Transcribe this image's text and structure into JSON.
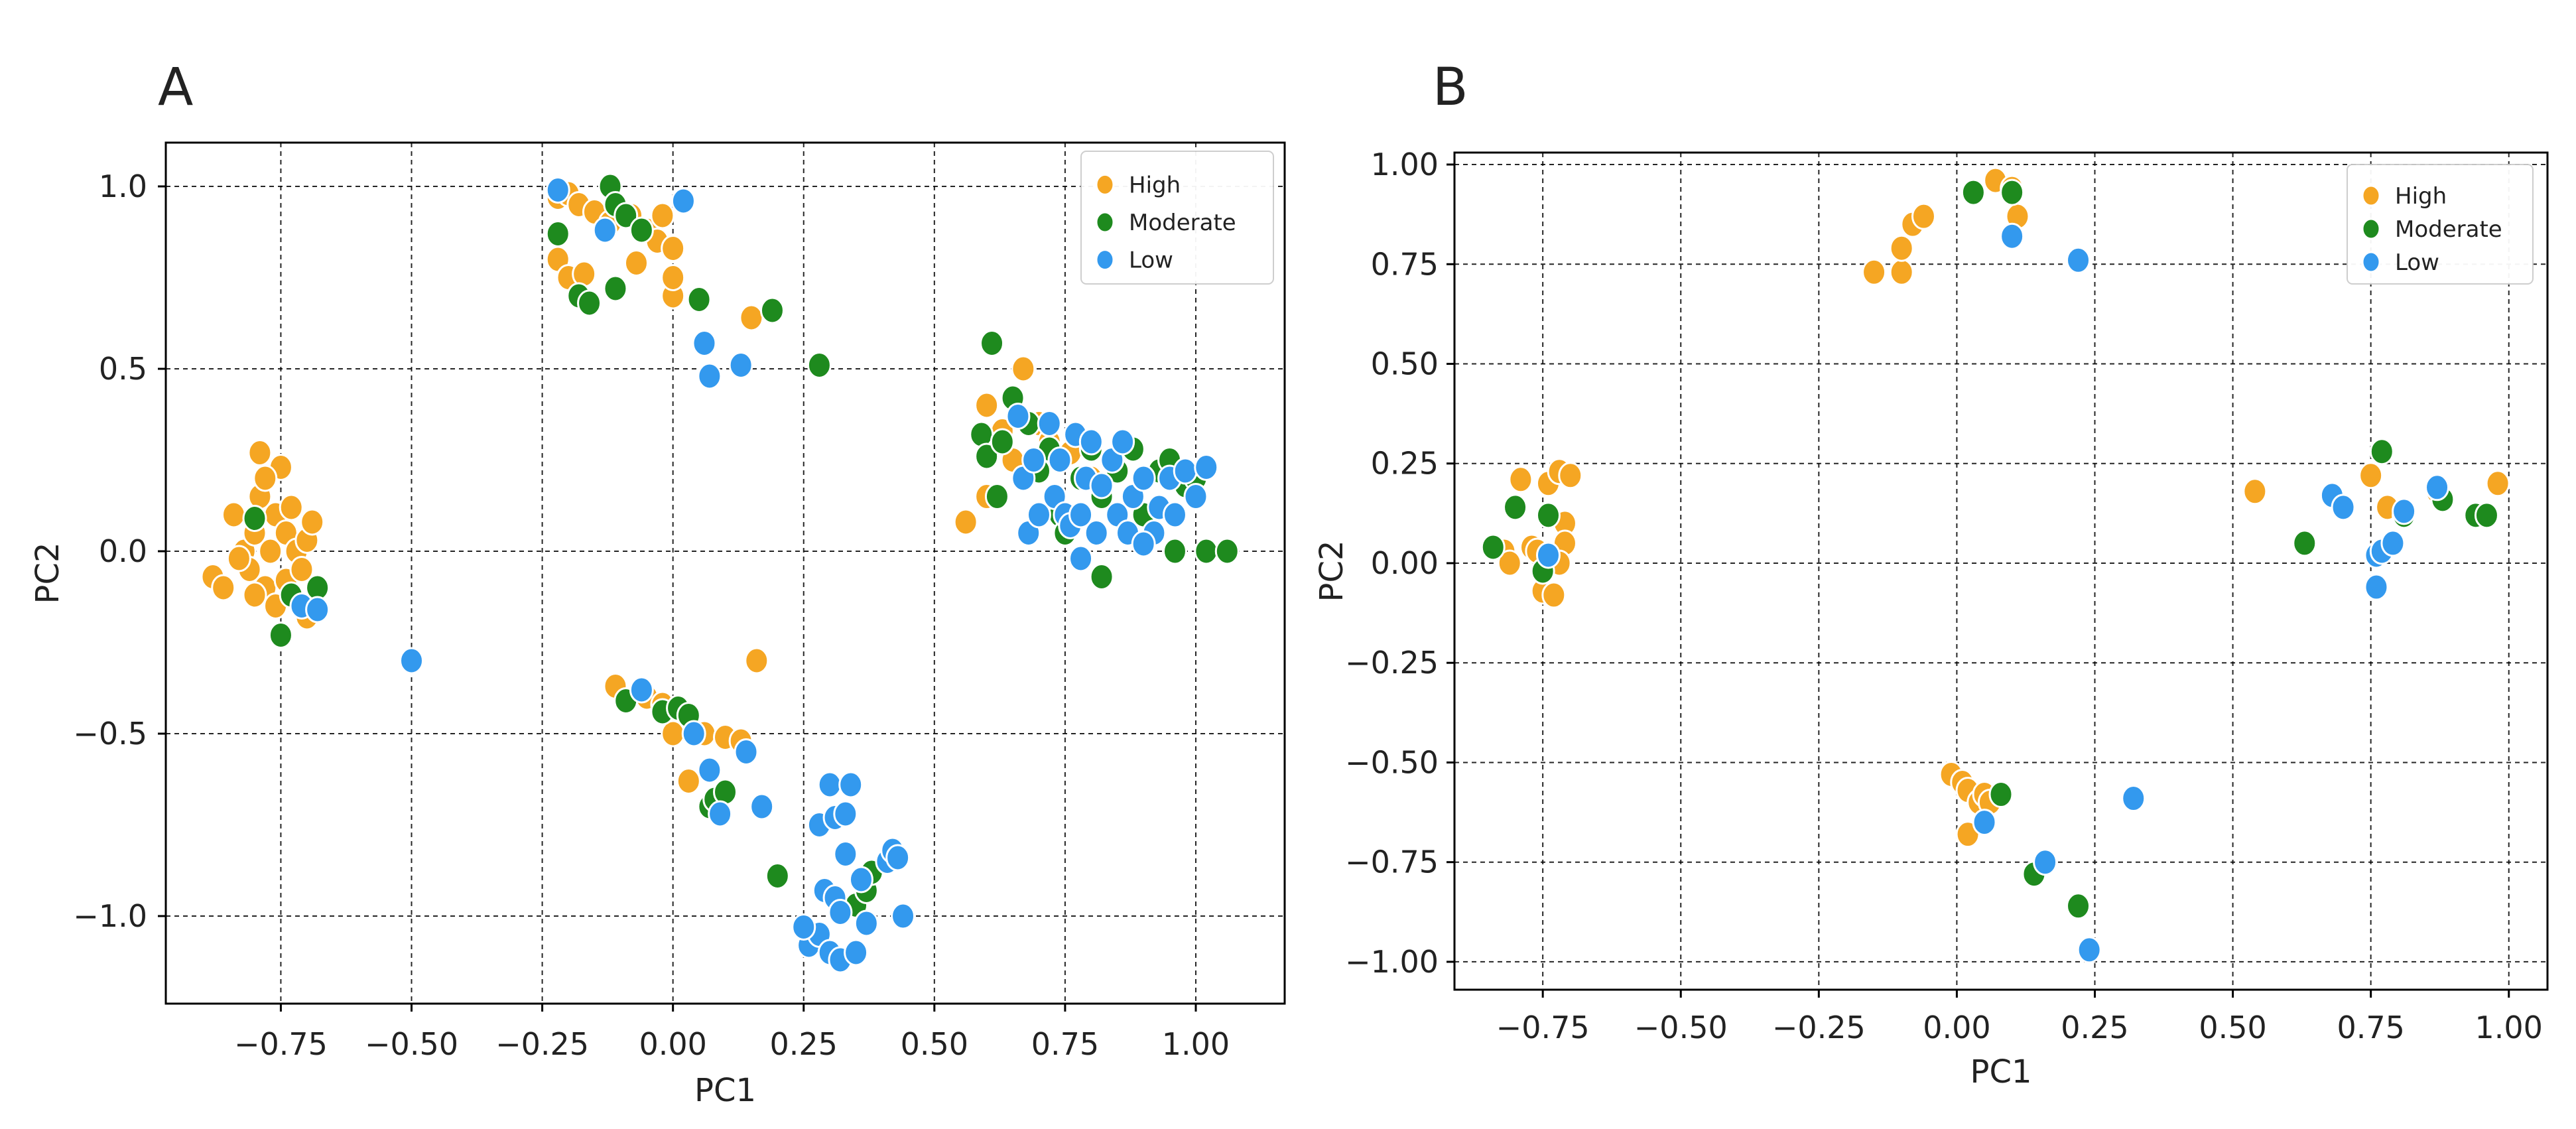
{
  "colors": {
    "High": "#F5A623",
    "Moderate": "#1E8A1E",
    "Low": "#3399EE"
  },
  "chart_data": [
    {
      "panel": "A",
      "type": "scatter",
      "title": "",
      "xlabel": "PC1",
      "ylabel": "PC2",
      "xlim": [
        -0.97,
        1.17
      ],
      "ylim": [
        -1.24,
        1.12
      ],
      "xticks": [
        -0.75,
        -0.5,
        -0.25,
        0.0,
        0.25,
        0.5,
        0.75,
        1.0
      ],
      "xtick_labels": [
        "−0.75",
        "−0.50",
        "−0.25",
        "0.00",
        "0.25",
        "0.50",
        "0.75",
        "1.00"
      ],
      "yticks": [
        -1.0,
        -0.5,
        0.0,
        0.5,
        1.0
      ],
      "ytick_labels": [
        "−1.0",
        "−0.5",
        "0.0",
        "0.5",
        "1.0"
      ],
      "grid": true,
      "legend_position": "top-right",
      "series": [
        {
          "name": "High",
          "points": [
            [
              -0.88,
              -0.07
            ],
            [
              -0.86,
              -0.1
            ],
            [
              -0.84,
              0.1
            ],
            [
              -0.82,
              0.0
            ],
            [
              -0.81,
              -0.05
            ],
            [
              -0.8,
              0.05
            ],
            [
              -0.79,
              0.27
            ],
            [
              -0.79,
              0.15
            ],
            [
              -0.78,
              -0.1
            ],
            [
              -0.77,
              0.0
            ],
            [
              -0.76,
              0.1
            ],
            [
              -0.76,
              -0.15
            ],
            [
              -0.75,
              0.23
            ],
            [
              -0.74,
              0.05
            ],
            [
              -0.74,
              -0.08
            ],
            [
              -0.73,
              0.12
            ],
            [
              -0.72,
              0.0
            ],
            [
              -0.71,
              -0.05
            ],
            [
              -0.7,
              0.03
            ],
            [
              -0.69,
              0.08
            ],
            [
              -0.7,
              -0.18
            ],
            [
              -0.8,
              -0.12
            ],
            [
              -0.83,
              -0.02
            ],
            [
              -0.78,
              0.2
            ],
            [
              -0.22,
              0.97
            ],
            [
              -0.2,
              0.98
            ],
            [
              -0.18,
              0.95
            ],
            [
              -0.15,
              0.93
            ],
            [
              -0.12,
              0.9
            ],
            [
              -0.08,
              0.92
            ],
            [
              -0.05,
              0.88
            ],
            [
              -0.03,
              0.85
            ],
            [
              0.0,
              0.83
            ],
            [
              0.0,
              0.7
            ],
            [
              0.0,
              0.75
            ],
            [
              -0.22,
              0.8
            ],
            [
              -0.2,
              0.75
            ],
            [
              -0.17,
              0.76
            ],
            [
              -0.07,
              0.79
            ],
            [
              0.15,
              0.64
            ],
            [
              -0.02,
              0.92
            ],
            [
              -0.11,
              -0.37
            ],
            [
              -0.05,
              -0.4
            ],
            [
              -0.02,
              -0.42
            ],
            [
              0.0,
              -0.45
            ],
            [
              0.03,
              -0.48
            ],
            [
              0.06,
              -0.5
            ],
            [
              0.1,
              -0.51
            ],
            [
              0.13,
              -0.52
            ],
            [
              0.16,
              -0.3
            ],
            [
              0.03,
              -0.63
            ],
            [
              0.0,
              -0.5
            ],
            [
              0.56,
              0.08
            ],
            [
              0.6,
              0.4
            ],
            [
              0.63,
              0.33
            ],
            [
              0.65,
              0.25
            ],
            [
              0.67,
              0.5
            ],
            [
              0.7,
              0.35
            ],
            [
              0.72,
              0.3
            ],
            [
              0.76,
              0.27
            ],
            [
              0.8,
              0.2
            ],
            [
              0.6,
              0.15
            ]
          ]
        },
        {
          "name": "Moderate",
          "points": [
            [
              -0.8,
              0.09
            ],
            [
              -0.75,
              -0.23
            ],
            [
              -0.73,
              -0.12
            ],
            [
              -0.68,
              -0.1
            ],
            [
              -0.22,
              0.87
            ],
            [
              -0.18,
              0.7
            ],
            [
              -0.16,
              0.68
            ],
            [
              -0.12,
              1.0
            ],
            [
              -0.11,
              0.95
            ],
            [
              -0.09,
              0.92
            ],
            [
              -0.06,
              0.88
            ],
            [
              -0.11,
              0.72
            ],
            [
              0.05,
              0.69
            ],
            [
              0.19,
              0.66
            ],
            [
              0.28,
              0.51
            ],
            [
              -0.09,
              -0.41
            ],
            [
              -0.02,
              -0.44
            ],
            [
              0.01,
              -0.43
            ],
            [
              0.03,
              -0.45
            ],
            [
              0.07,
              -0.7
            ],
            [
              0.08,
              -0.68
            ],
            [
              0.1,
              -0.66
            ],
            [
              0.2,
              -0.89
            ],
            [
              0.35,
              -0.97
            ],
            [
              0.37,
              -0.93
            ],
            [
              0.38,
              -0.88
            ],
            [
              0.59,
              0.32
            ],
            [
              0.6,
              0.26
            ],
            [
              0.61,
              0.57
            ],
            [
              0.63,
              0.3
            ],
            [
              0.65,
              0.42
            ],
            [
              0.68,
              0.35
            ],
            [
              0.7,
              0.22
            ],
            [
              0.72,
              0.28
            ],
            [
              0.74,
              0.1
            ],
            [
              0.78,
              0.2
            ],
            [
              0.8,
              0.28
            ],
            [
              0.82,
              0.15
            ],
            [
              0.82,
              -0.07
            ],
            [
              0.85,
              0.22
            ],
            [
              0.88,
              0.28
            ],
            [
              0.9,
              0.1
            ],
            [
              0.93,
              0.22
            ],
            [
              0.95,
              0.25
            ],
            [
              0.98,
              0.18
            ],
            [
              1.0,
              0.2
            ],
            [
              1.02,
              0.0
            ],
            [
              1.06,
              0.0
            ],
            [
              0.96,
              0.0
            ],
            [
              0.75,
              0.05
            ],
            [
              0.62,
              0.15
            ]
          ]
        },
        {
          "name": "Low",
          "points": [
            [
              -0.71,
              -0.15
            ],
            [
              -0.68,
              -0.16
            ],
            [
              -0.5,
              -0.3
            ],
            [
              -0.22,
              0.99
            ],
            [
              -0.13,
              0.88
            ],
            [
              0.02,
              0.96
            ],
            [
              0.06,
              0.57
            ],
            [
              0.07,
              0.48
            ],
            [
              0.13,
              0.51
            ],
            [
              -0.06,
              -0.38
            ],
            [
              0.04,
              -0.5
            ],
            [
              0.07,
              -0.6
            ],
            [
              0.09,
              -0.72
            ],
            [
              0.14,
              -0.55
            ],
            [
              0.17,
              -0.7
            ],
            [
              0.26,
              -1.08
            ],
            [
              0.28,
              -0.75
            ],
            [
              0.28,
              -1.05
            ],
            [
              0.29,
              -0.93
            ],
            [
              0.3,
              -0.64
            ],
            [
              0.3,
              -1.1
            ],
            [
              0.31,
              -0.95
            ],
            [
              0.31,
              -0.73
            ],
            [
              0.32,
              -1.12
            ],
            [
              0.33,
              -0.72
            ],
            [
              0.33,
              -0.83
            ],
            [
              0.34,
              -0.64
            ],
            [
              0.35,
              -1.1
            ],
            [
              0.36,
              -0.9
            ],
            [
              0.37,
              -1.02
            ],
            [
              0.41,
              -0.85
            ],
            [
              0.42,
              -0.82
            ],
            [
              0.43,
              -0.84
            ],
            [
              0.44,
              -1.0
            ],
            [
              0.32,
              -0.99
            ],
            [
              0.25,
              -1.03
            ],
            [
              0.66,
              0.37
            ],
            [
              0.67,
              0.2
            ],
            [
              0.68,
              0.05
            ],
            [
              0.69,
              0.25
            ],
            [
              0.7,
              0.1
            ],
            [
              0.72,
              0.35
            ],
            [
              0.73,
              0.15
            ],
            [
              0.74,
              0.25
            ],
            [
              0.75,
              0.1
            ],
            [
              0.76,
              0.07
            ],
            [
              0.77,
              0.32
            ],
            [
              0.78,
              0.1
            ],
            [
              0.79,
              0.2
            ],
            [
              0.8,
              0.3
            ],
            [
              0.81,
              0.05
            ],
            [
              0.82,
              0.18
            ],
            [
              0.84,
              0.25
            ],
            [
              0.85,
              0.1
            ],
            [
              0.86,
              0.3
            ],
            [
              0.87,
              0.05
            ],
            [
              0.88,
              0.15
            ],
            [
              0.9,
              0.2
            ],
            [
              0.92,
              0.05
            ],
            [
              0.93,
              0.12
            ],
            [
              0.95,
              0.2
            ],
            [
              0.96,
              0.1
            ],
            [
              0.98,
              0.22
            ],
            [
              1.0,
              0.15
            ],
            [
              1.02,
              0.23
            ],
            [
              0.78,
              -0.02
            ],
            [
              0.9,
              0.02
            ]
          ]
        }
      ]
    },
    {
      "panel": "B",
      "type": "scatter",
      "title": "",
      "xlabel": "PC1",
      "ylabel": "PC2",
      "xlim": [
        -0.91,
        1.07
      ],
      "ylim": [
        -1.07,
        1.03
      ],
      "xticks": [
        -0.75,
        -0.5,
        -0.25,
        0.0,
        0.25,
        0.5,
        0.75,
        1.0
      ],
      "xtick_labels": [
        "−0.75",
        "−0.50",
        "−0.25",
        "0.00",
        "0.25",
        "0.50",
        "0.75",
        "1.00"
      ],
      "yticks": [
        -1.0,
        -0.75,
        -0.5,
        -0.25,
        0.0,
        0.25,
        0.5,
        0.75,
        1.0
      ],
      "ytick_labels": [
        "−1.00",
        "−0.75",
        "−0.50",
        "−0.25",
        "0.00",
        "0.25",
        "0.50",
        "0.75",
        "1.00"
      ],
      "grid": true,
      "legend_position": "top-right",
      "series": [
        {
          "name": "High",
          "points": [
            [
              -0.82,
              0.03
            ],
            [
              -0.81,
              0.0
            ],
            [
              -0.79,
              0.21
            ],
            [
              -0.77,
              0.04
            ],
            [
              -0.76,
              0.03
            ],
            [
              -0.75,
              -0.07
            ],
            [
              -0.74,
              0.2
            ],
            [
              -0.73,
              -0.08
            ],
            [
              -0.72,
              0.23
            ],
            [
              -0.71,
              0.1
            ],
            [
              -0.71,
              0.05
            ],
            [
              -0.7,
              0.22
            ],
            [
              -0.72,
              0.0
            ],
            [
              -0.15,
              0.73
            ],
            [
              -0.1,
              0.73
            ],
            [
              -0.1,
              0.79
            ],
            [
              -0.08,
              0.85
            ],
            [
              -0.06,
              0.87
            ],
            [
              0.07,
              0.96
            ],
            [
              0.1,
              0.94
            ],
            [
              0.11,
              0.87
            ],
            [
              -0.01,
              -0.53
            ],
            [
              0.01,
              -0.55
            ],
            [
              0.02,
              -0.57
            ],
            [
              0.02,
              -0.68
            ],
            [
              0.04,
              -0.6
            ],
            [
              0.05,
              -0.58
            ],
            [
              0.06,
              -0.6
            ],
            [
              0.54,
              0.18
            ],
            [
              0.75,
              0.22
            ],
            [
              0.78,
              0.14
            ],
            [
              0.87,
              0.18
            ],
            [
              0.98,
              0.2
            ]
          ]
        },
        {
          "name": "Moderate",
          "points": [
            [
              -0.84,
              0.04
            ],
            [
              -0.8,
              0.14
            ],
            [
              -0.75,
              -0.02
            ],
            [
              -0.74,
              0.12
            ],
            [
              0.03,
              0.93
            ],
            [
              0.1,
              0.93
            ],
            [
              0.08,
              -0.58
            ],
            [
              0.14,
              -0.78
            ],
            [
              0.22,
              -0.86
            ],
            [
              0.63,
              0.05
            ],
            [
              0.77,
              0.28
            ],
            [
              0.81,
              0.12
            ],
            [
              0.94,
              0.12
            ],
            [
              0.96,
              0.12
            ],
            [
              0.88,
              0.16
            ]
          ]
        },
        {
          "name": "Low",
          "points": [
            [
              -0.74,
              0.02
            ],
            [
              0.1,
              0.82
            ],
            [
              0.22,
              0.76
            ],
            [
              0.05,
              -0.65
            ],
            [
              0.16,
              -0.75
            ],
            [
              0.24,
              -0.97
            ],
            [
              0.32,
              -0.59
            ],
            [
              0.68,
              0.17
            ],
            [
              0.7,
              0.14
            ],
            [
              0.76,
              -0.06
            ],
            [
              0.76,
              0.02
            ],
            [
              0.77,
              0.03
            ],
            [
              0.79,
              0.05
            ],
            [
              0.81,
              0.13
            ],
            [
              0.87,
              0.19
            ]
          ]
        }
      ]
    }
  ]
}
